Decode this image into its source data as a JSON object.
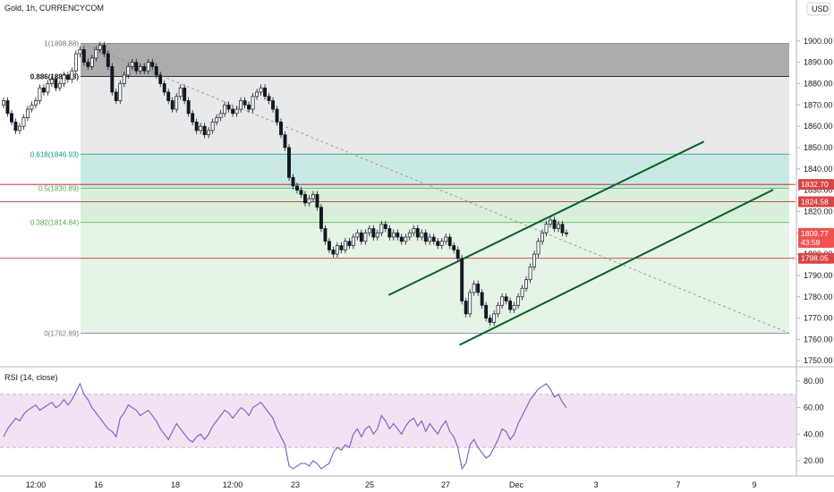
{
  "header": {
    "title": "Gold, 1h, CURRENCYCOM",
    "currency": "USD"
  },
  "chart_data": {
    "type": "candlestick",
    "symbol": "Gold",
    "interval": "1h",
    "exchange": "CURRENCYCOM",
    "x_tick_labels": [
      "12:00",
      "16",
      "18",
      "12:00",
      "23",
      "25",
      "27",
      "Dec",
      "3",
      "7",
      "9"
    ],
    "y_ticks": [
      1900,
      1890,
      1880,
      1870,
      1860,
      1850,
      1840,
      1830,
      1820,
      1810,
      1800,
      1790,
      1780,
      1770,
      1760,
      1750
    ],
    "y_tick_labels": [
      "1900.00",
      "1890.00",
      "1880.00",
      "1870.00",
      "1860.00",
      "1850.00",
      "1840.00",
      "1830.00",
      "1820.00",
      "1810.00",
      "1800.00",
      "1790.00",
      "1780.00",
      "1770.00",
      "1760.00",
      "1750.00"
    ],
    "ylim": [
      1748,
      1910
    ],
    "fib_levels": [
      {
        "label": "1(1898.88)",
        "ratio": 1,
        "price": 1898.88,
        "color": "#787b86"
      },
      {
        "label": "0.886(1883.38)",
        "ratio": 0.886,
        "price": 1883.38,
        "color": "#131722"
      },
      {
        "label": "0.618(1846.93)",
        "ratio": 0.618,
        "price": 1846.93,
        "color": "#089981"
      },
      {
        "label": "0.5(1830.89)",
        "ratio": 0.5,
        "price": 1830.89,
        "color": "#4caf50"
      },
      {
        "label": "0.382(1814.84)",
        "ratio": 0.382,
        "price": 1814.84,
        "color": "#4caf50"
      },
      {
        "label": "0(1762.89)",
        "ratio": 0,
        "price": 1762.89,
        "color": "#787b86"
      }
    ],
    "horizontal_lines": [
      1832.7,
      1824.58,
      1798.05
    ],
    "price_tags": [
      {
        "text": "1832.70",
        "price": 1832.7,
        "color": "#d84545"
      },
      {
        "text": "1824.58",
        "price": 1824.58,
        "color": "#d84545"
      },
      {
        "text": "1809.77",
        "price": 1809.77,
        "color": "#ef5350"
      },
      {
        "text": "43:59",
        "price": 1805.5,
        "color": "#ef5350"
      },
      {
        "text": "1798.05",
        "price": 1798.05,
        "color": "#d84545"
      }
    ],
    "last_price": 1809.77,
    "countdown": "43:59",
    "candles_close": [
      1872,
      1866,
      1862,
      1858,
      1860,
      1864,
      1868,
      1870,
      1872,
      1878,
      1876,
      1880,
      1882,
      1878,
      1880,
      1884,
      1882,
      1886,
      1894,
      1896,
      1890,
      1888,
      1892,
      1896,
      1898,
      1894,
      1888,
      1876,
      1872,
      1880,
      1884,
      1888,
      1890,
      1886,
      1888,
      1886,
      1890,
      1888,
      1884,
      1880,
      1876,
      1872,
      1868,
      1874,
      1878,
      1872,
      1866,
      1862,
      1858,
      1860,
      1856,
      1858,
      1862,
      1864,
      1866,
      1870,
      1868,
      1866,
      1868,
      1872,
      1870,
      1868,
      1874,
      1876,
      1878,
      1874,
      1872,
      1868,
      1862,
      1856,
      1850,
      1836,
      1832,
      1830,
      1828,
      1824,
      1826,
      1828,
      1822,
      1812,
      1806,
      1802,
      1800,
      1804,
      1802,
      1806,
      1804,
      1808,
      1810,
      1806,
      1810,
      1812,
      1808,
      1810,
      1814,
      1812,
      1808,
      1810,
      1808,
      1806,
      1808,
      1810,
      1812,
      1808,
      1810,
      1806,
      1808,
      1806,
      1804,
      1806,
      1808,
      1804,
      1802,
      1798,
      1778,
      1772,
      1782,
      1786,
      1782,
      1776,
      1770,
      1768,
      1772,
      1776,
      1780,
      1778,
      1774,
      1776,
      1780,
      1784,
      1788,
      1794,
      1800,
      1806,
      1810,
      1814,
      1816,
      1812,
      1814,
      1810,
      1809.77
    ],
    "channel": [
      {
        "name": "upper",
        "x1_frac": 0.466,
        "p1": 1780.8,
        "x2_frac": 0.844,
        "p2": 1852.8
      },
      {
        "name": "lower",
        "x1_frac": 0.551,
        "p1": 1757.4,
        "x2_frac": 0.927,
        "p2": 1830.2
      }
    ],
    "trend_dashed": {
      "from_price": 1898.88,
      "to_price": 1762.89
    },
    "rsi": {
      "label": "RSI (14, close)",
      "ylim": [
        0,
        100
      ],
      "y_ticks": [
        80,
        60,
        40,
        20
      ],
      "y_tick_labels": [
        "80.00",
        "60.00",
        "40.00",
        "20.00"
      ],
      "band": [
        30,
        70
      ],
      "values": [
        38,
        44,
        48,
        52,
        50,
        55,
        58,
        60,
        62,
        58,
        60,
        62,
        64,
        60,
        62,
        66,
        62,
        66,
        72,
        78,
        70,
        66,
        60,
        56,
        52,
        48,
        44,
        42,
        38,
        52,
        56,
        62,
        60,
        58,
        54,
        56,
        58,
        54,
        50,
        44,
        40,
        36,
        42,
        48,
        44,
        40,
        36,
        34,
        38,
        40,
        36,
        40,
        46,
        50,
        54,
        58,
        56,
        52,
        56,
        60,
        58,
        54,
        60,
        62,
        64,
        60,
        56,
        52,
        44,
        38,
        32,
        16,
        14,
        16,
        18,
        18,
        16,
        20,
        18,
        14,
        16,
        18,
        26,
        30,
        28,
        32,
        30,
        40,
        44,
        38,
        44,
        46,
        40,
        44,
        54,
        50,
        44,
        48,
        44,
        40,
        46,
        50,
        52,
        46,
        50,
        42,
        48,
        44,
        40,
        46,
        50,
        42,
        38,
        30,
        14,
        18,
        32,
        36,
        30,
        26,
        22,
        24,
        30,
        36,
        44,
        42,
        36,
        40,
        48,
        54,
        60,
        66,
        70,
        74,
        76,
        78,
        74,
        68,
        70,
        64,
        60
      ]
    }
  }
}
